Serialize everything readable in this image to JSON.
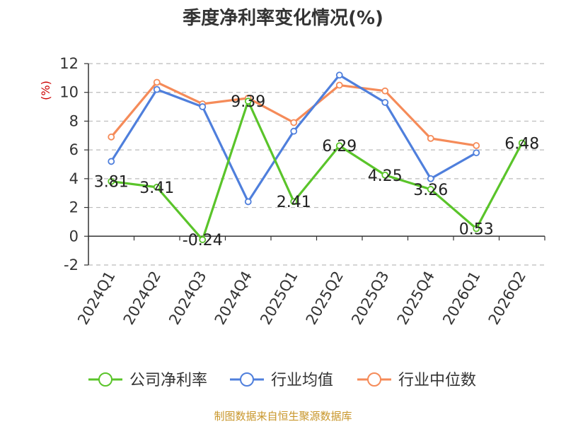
{
  "chart_data": {
    "type": "line",
    "title": "季度净利率变化情况(%)",
    "ylabel": "(%)",
    "unit_color": "#cc0000",
    "categories": [
      "2024Q1",
      "2024Q2",
      "2024Q3",
      "2024Q4",
      "2025Q1",
      "2025Q2",
      "2025Q3",
      "2025Q4",
      "2026Q1",
      "2026Q2"
    ],
    "ylim": [
      -2,
      12
    ],
    "yticks": [
      -2,
      0,
      2,
      4,
      6,
      8,
      10,
      12
    ],
    "grid": true,
    "legend_position": "bottom",
    "series": [
      {
        "name": "公司净利率",
        "color": "#5ac42a",
        "values": [
          3.81,
          3.41,
          -0.24,
          9.39,
          2.41,
          6.29,
          4.25,
          3.26,
          0.53,
          6.48
        ],
        "labels": [
          "3.81",
          "3.41",
          "-0.24",
          "9.39",
          "2.41",
          "6.29",
          "4.25",
          "3.26",
          "0.53",
          "6.48"
        ]
      },
      {
        "name": "行业均值",
        "color": "#4f7fdc",
        "values": [
          5.2,
          10.2,
          9.0,
          2.4,
          7.3,
          11.2,
          9.3,
          4.0,
          5.8,
          null
        ]
      },
      {
        "name": "行业中位数",
        "color": "#f58b59",
        "values": [
          6.9,
          10.7,
          9.2,
          9.6,
          7.9,
          10.5,
          10.1,
          6.8,
          6.3,
          null
        ]
      }
    ]
  },
  "source_text": "制图数据来自恒生聚源数据库",
  "source_color": "#c8962a"
}
